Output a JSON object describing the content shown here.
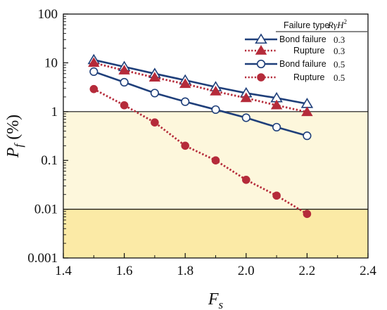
{
  "chart_data": {
    "type": "line",
    "xlabel": "F",
    "xlabel_sub": "s",
    "ylabel": "P",
    "ylabel_sub": "f",
    "ylabel_unit": " (%)",
    "xlim": [
      1.4,
      2.4
    ],
    "ylim": [
      0.001,
      100
    ],
    "yscale": "log",
    "x_ticks": [
      "1.4",
      "1.6",
      "1.8",
      "2.0",
      "2.2",
      "2.4"
    ],
    "y_ticks": [
      "0.001",
      "0.01",
      "0.1",
      "1",
      "10",
      "100"
    ],
    "bands": [
      {
        "from": 0.01,
        "to": 1,
        "color": "#fdf7dc"
      },
      {
        "from": 0.001,
        "to": 0.01,
        "color": "#fbeaa6"
      }
    ],
    "reference_lines": [
      1,
      0.01
    ],
    "legend": {
      "position": "top-right",
      "header_col1": "Failure type",
      "header_col2": "RγH²"
    },
    "series": [
      {
        "name": "Bond failure",
        "param": "0.3",
        "marker": "triangle-open",
        "line": "solid",
        "color": "#1f3f7a",
        "x": [
          1.5,
          1.6,
          1.7,
          1.8,
          1.9,
          2.0,
          2.1,
          2.2
        ],
        "y": [
          11.5,
          8.3,
          6.0,
          4.4,
          3.2,
          2.4,
          1.9,
          1.45
        ]
      },
      {
        "name": "Rupture",
        "param": "0.3",
        "marker": "triangle-filled",
        "line": "dotted",
        "color": "#b52b3a",
        "x": [
          1.5,
          1.6,
          1.7,
          1.8,
          1.9,
          2.0,
          2.1,
          2.2
        ],
        "y": [
          10.0,
          7.0,
          5.0,
          3.7,
          2.6,
          1.9,
          1.35,
          0.98
        ]
      },
      {
        "name": "Bond failure",
        "param": "0.5",
        "marker": "circle-open",
        "line": "solid",
        "color": "#1f3f7a",
        "x": [
          1.5,
          1.6,
          1.7,
          1.8,
          1.9,
          2.0,
          2.1,
          2.2
        ],
        "y": [
          6.6,
          4.0,
          2.4,
          1.6,
          1.1,
          0.75,
          0.48,
          0.32
        ]
      },
      {
        "name": "Rupture",
        "param": "0.5",
        "marker": "circle-filled",
        "line": "dotted",
        "color": "#b52b3a",
        "x": [
          1.5,
          1.6,
          1.7,
          1.8,
          1.9,
          2.0,
          2.1,
          2.2
        ],
        "y": [
          2.9,
          1.35,
          0.6,
          0.2,
          0.1,
          0.04,
          0.019,
          0.008
        ]
      }
    ]
  }
}
